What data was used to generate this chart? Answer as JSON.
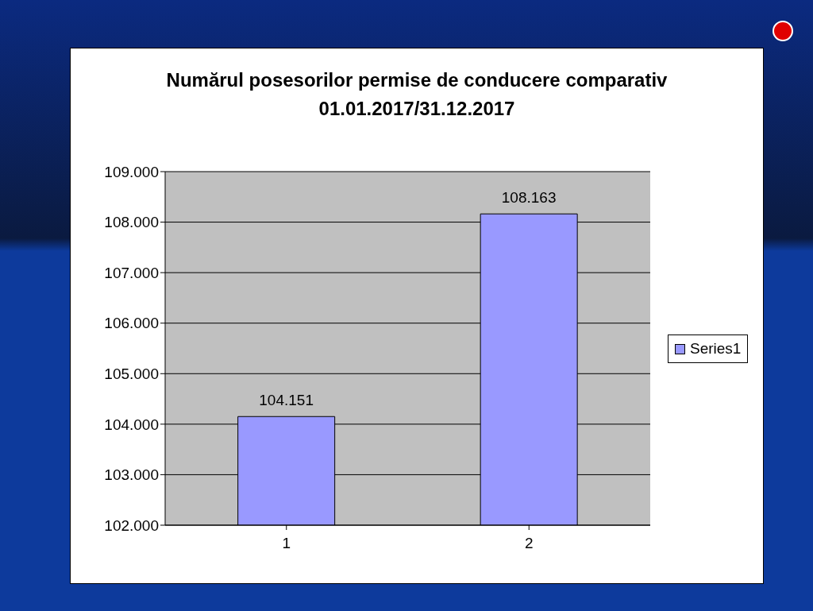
{
  "chart_data": {
    "type": "bar",
    "title": "Numărul posesorilor permise de conducere comparativ 01.01.2017/31.12.2017",
    "categories": [
      "1",
      "2"
    ],
    "series": [
      {
        "name": "Series1",
        "color": "#9999ff",
        "values": [
          104151,
          108163
        ],
        "value_labels": [
          "104.151",
          "108.163"
        ]
      }
    ],
    "ylim": [
      102000,
      109000
    ],
    "yticks": [
      {
        "value": 102000,
        "label": "102.000"
      },
      {
        "value": 103000,
        "label": "103.000"
      },
      {
        "value": 104000,
        "label": "104.000"
      },
      {
        "value": 105000,
        "label": "105.000"
      },
      {
        "value": 106000,
        "label": "106.000"
      },
      {
        "value": 107000,
        "label": "107.000"
      },
      {
        "value": 108000,
        "label": "108.000"
      },
      {
        "value": 109000,
        "label": "109.000"
      }
    ],
    "grid": "y",
    "legend": "right"
  }
}
